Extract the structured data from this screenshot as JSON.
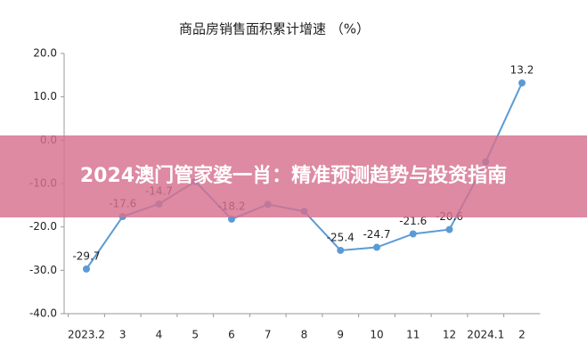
{
  "chart_data": {
    "type": "line",
    "title": "商品房销售面积累计增速 （%）",
    "categories": [
      "2023.2",
      "3",
      "4",
      "5",
      "6",
      "7",
      "8",
      "9",
      "10",
      "11",
      "12",
      "2024.1",
      "2"
    ],
    "series": [
      {
        "name": "商品房销售面积累计增速",
        "color": "#5b9bd5",
        "values": [
          -29.7,
          -17.6,
          -14.7,
          -9.5,
          -18.2,
          -14.8,
          -16.4,
          -25.4,
          -24.7,
          -21.6,
          -20.6,
          -5,
          13.2
        ],
        "value_labels": [
          "-29.7",
          "-17.6",
          "-14.7",
          null,
          "-18.2",
          null,
          null,
          "-25.4",
          "-24.7",
          "-21.6",
          "-20.6",
          null,
          "13.2"
        ]
      }
    ],
    "ylim": [
      -40,
      20
    ],
    "yticks": [
      {
        "value": 20,
        "label": "20.0"
      },
      {
        "value": 10,
        "label": "10.0"
      },
      {
        "value": 0,
        "label": "0.0"
      },
      {
        "value": -10,
        "label": "-10.0"
      },
      {
        "value": -20,
        "label": "-20.0"
      },
      {
        "value": -30,
        "label": "-30.0"
      },
      {
        "value": -40,
        "label": "-40.0"
      }
    ],
    "grid": false
  },
  "banner": {
    "title": "2024澳门管家婆一肖：精准预测趋势与投资指南"
  }
}
